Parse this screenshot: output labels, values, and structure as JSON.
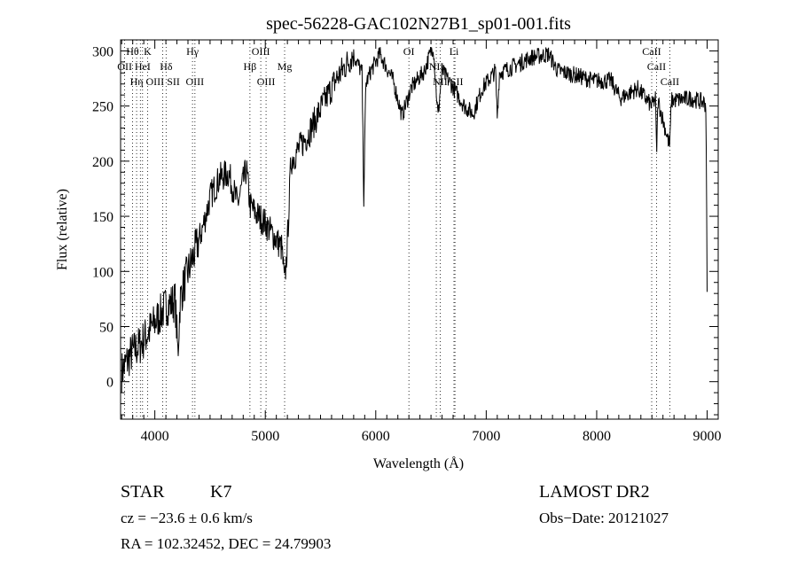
{
  "chart_data": {
    "type": "line",
    "title": "spec-56228-GAC102N27B1_sp01-001.fits",
    "xlabel": "Wavelength (Å)",
    "ylabel": "Flux (relative)",
    "xlim": [
      3690,
      9100
    ],
    "ylim": [
      -34,
      310
    ],
    "xticks": [
      4000,
      5000,
      6000,
      7000,
      8000,
      9000
    ],
    "yticks": [
      0,
      50,
      100,
      150,
      200,
      250,
      300
    ],
    "grid": false,
    "series": [
      {
        "name": "spectrum",
        "anchors": [
          [
            3700,
            9
          ],
          [
            3783,
            25
          ],
          [
            3863,
            33
          ],
          [
            3944,
            45
          ],
          [
            4024,
            57
          ],
          [
            4105,
            69
          ],
          [
            4185,
            73
          ],
          [
            4209,
            25
          ],
          [
            4230,
            75
          ],
          [
            4266,
            89
          ],
          [
            4346,
            113
          ],
          [
            4427,
            137
          ],
          [
            4507,
            169
          ],
          [
            4588,
            185
          ],
          [
            4668,
            189
          ],
          [
            4749,
            161
          ],
          [
            4829,
            193
          ],
          [
            4861,
            160
          ],
          [
            4910,
            153
          ],
          [
            4990,
            145
          ],
          [
            5071,
            133
          ],
          [
            5151,
            121
          ],
          [
            5175,
            88
          ],
          [
            5200,
            125
          ],
          [
            5232,
            200
          ],
          [
            5393,
            225
          ],
          [
            5514,
            250
          ],
          [
            5634,
            273
          ],
          [
            5795,
            297
          ],
          [
            5876,
            280
          ],
          [
            5892,
            165
          ],
          [
            5910,
            270
          ],
          [
            5956,
            282
          ],
          [
            6037,
            297
          ],
          [
            6158,
            273
          ],
          [
            6238,
            241
          ],
          [
            6319,
            266
          ],
          [
            6440,
            282
          ],
          [
            6520,
            305
          ],
          [
            6563,
            240
          ],
          [
            6600,
            282
          ],
          [
            6681,
            270
          ],
          [
            6802,
            250
          ],
          [
            6882,
            243
          ],
          [
            6963,
            266
          ],
          [
            7084,
            282
          ],
          [
            7100,
            241
          ],
          [
            7120,
            280
          ],
          [
            7245,
            286
          ],
          [
            7406,
            294
          ],
          [
            7567,
            297
          ],
          [
            7647,
            282
          ],
          [
            7808,
            278
          ],
          [
            7969,
            273
          ],
          [
            8130,
            273
          ],
          [
            8211,
            257
          ],
          [
            8372,
            266
          ],
          [
            8498,
            250
          ],
          [
            8533,
            257
          ],
          [
            8542,
            205
          ],
          [
            8555,
            255
          ],
          [
            8662,
            213
          ],
          [
            8675,
            255
          ],
          [
            8855,
            257
          ],
          [
            8976,
            253
          ],
          [
            8990,
            250
          ],
          [
            9000,
            80
          ]
        ]
      }
    ],
    "line_markers": [
      {
        "label": "Hθ",
        "wavelength": 3798,
        "row": 1
      },
      {
        "label": "K",
        "wavelength": 3934,
        "row": 1
      },
      {
        "label": "Hγ",
        "wavelength": 4341,
        "row": 1
      },
      {
        "label": "OIII",
        "wavelength": 4959,
        "row": 1
      },
      {
        "label": "OI",
        "wavelength": 6300,
        "row": 1
      },
      {
        "label": "Li",
        "wavelength": 6708,
        "row": 1
      },
      {
        "label": "CaII",
        "wavelength": 8498,
        "row": 1
      },
      {
        "label": "OII",
        "wavelength": 3727,
        "row": 2
      },
      {
        "label": "HeI",
        "wavelength": 3889,
        "row": 2
      },
      {
        "label": "Hδ",
        "wavelength": 4102,
        "row": 2
      },
      {
        "label": "Hβ",
        "wavelength": 4861,
        "row": 2
      },
      {
        "label": "Mg",
        "wavelength": 5175,
        "row": 2
      },
      {
        "label": "NII",
        "wavelength": 6548,
        "row": 2
      },
      {
        "label": "CaII",
        "wavelength": 8542,
        "row": 2
      },
      {
        "label": "OIII",
        "wavelength": 3869,
        "row": 3
      },
      {
        "label": "Hη",
        "wavelength": 3835,
        "row": 3
      },
      {
        "label": "SII",
        "wavelength": 4072,
        "row": 3
      },
      {
        "label": "OIII",
        "wavelength": 4363,
        "row": 3
      },
      {
        "label": "OIII",
        "wavelength": 5007,
        "row": 3
      },
      {
        "label": "NII",
        "wavelength": 6583,
        "row": 3
      },
      {
        "label": "SII",
        "wavelength": 6717,
        "row": 3
      },
      {
        "label": "CaII",
        "wavelength": 8662,
        "row": 3
      }
    ]
  },
  "info": {
    "object_type": "STAR",
    "subclass": "K7",
    "survey": "LAMOST DR2",
    "cz": "cz = −23.6 ± 0.6 km/s",
    "obs_date": "Obs−Date: 20121027",
    "coords": "RA = 102.32452, DEC =  24.79903"
  }
}
